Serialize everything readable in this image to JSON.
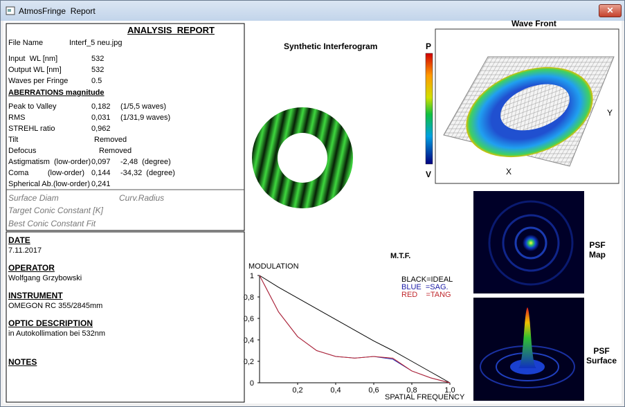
{
  "window": {
    "title": "AtmosFringe  Report"
  },
  "report": {
    "title": "ANALYSIS  REPORT",
    "file": [
      "File Name",
      "Interf_5 neu.jpg"
    ],
    "input_wl": [
      "Input  WL [nm]",
      "532"
    ],
    "output_wl": [
      "Output WL [nm]",
      "532"
    ],
    "waves": [
      "Waves per Fringe",
      "0.5"
    ],
    "aberrations_heading": "ABERRATIONS magnitude",
    "pv": [
      "Peak to Valley",
      "0,182",
      "(1/5,5 waves)"
    ],
    "rms": [
      "RMS",
      "0,031",
      "(1/31,9 waves)"
    ],
    "strehl": [
      "STREHL ratio",
      "0,962"
    ],
    "tilt": [
      "Tilt",
      "Removed"
    ],
    "defocus": [
      "Defocus",
      "Removed"
    ],
    "astig": [
      "Astigmatism  (low-order)",
      "0,097",
      "-2,48  (degree)"
    ],
    "coma": [
      "Coma         (low-order)",
      "0,144",
      "-34,32  (degree)"
    ],
    "spherical": [
      "Spherical Ab.(low-order)",
      "0,241"
    ],
    "surface_diam": "Surface Diam",
    "curv_radius": "Curv.Radius",
    "target_conic": "Target Conic Constant [K]",
    "best_conic": "Best Conic Constant Fit"
  },
  "info": {
    "date": [
      "DATE",
      "7.11.2017"
    ],
    "operator": [
      "OPERATOR",
      "Wolfgang Grzybowski"
    ],
    "instrument": [
      "INSTRUMENT",
      "OMEGON RC 355/2845mm"
    ],
    "optic": [
      "OPTIC DESCRIPTION",
      "in Autokollimation bei 532nm"
    ],
    "notes": "NOTES"
  },
  "panels": {
    "interferogram": "Synthetic Interferogram",
    "wavefront": "Wave Front",
    "p": "P",
    "v": "V",
    "x": "X",
    "y": "Y",
    "psf_map": "PSF\nMap",
    "psf_surface": "PSF\nSurface"
  },
  "chart_data": {
    "type": "line",
    "title": "M.T.F.",
    "y_label": "MODULATION",
    "x_label": "SPATIAL FREQUENCY",
    "x": [
      0,
      0.1,
      0.2,
      0.3,
      0.4,
      0.5,
      0.6,
      0.7,
      0.8,
      0.9,
      1
    ],
    "series": [
      {
        "name": "BLACK=IDEAL",
        "color": "#000000",
        "values": [
          1,
          0.89,
          0.79,
          0.69,
          0.59,
          0.49,
          0.39,
          0.3,
          0.2,
          0.1,
          0
        ]
      },
      {
        "name": "BLUE  =SAG.",
        "color": "#1a1aa6",
        "values": [
          1,
          0.66,
          0.43,
          0.3,
          0.245,
          0.23,
          0.245,
          0.22,
          0.11,
          0.045,
          0
        ]
      },
      {
        "name": "RED    =TANG",
        "color": "#c0282d",
        "values": [
          1,
          0.66,
          0.43,
          0.3,
          0.245,
          0.23,
          0.245,
          0.23,
          0.11,
          0.045,
          0
        ]
      }
    ],
    "xlim": [
      0,
      1
    ],
    "ylim": [
      0,
      1
    ],
    "xticks": [
      {
        "value": 0.2,
        "label": "0,2"
      },
      {
        "value": 0.4,
        "label": "0,4"
      },
      {
        "value": 0.6,
        "label": "0,6"
      },
      {
        "value": 0.8,
        "label": "0,8"
      },
      {
        "value": 1,
        "label": "1,0"
      }
    ],
    "yticks": [
      0,
      {
        "value": 0.2,
        "label": "0,2"
      },
      {
        "value": 0.4,
        "label": "0,4"
      },
      {
        "value": 0.6,
        "label": "0,6"
      },
      {
        "value": 0.8,
        "label": "0,8"
      },
      1
    ]
  }
}
